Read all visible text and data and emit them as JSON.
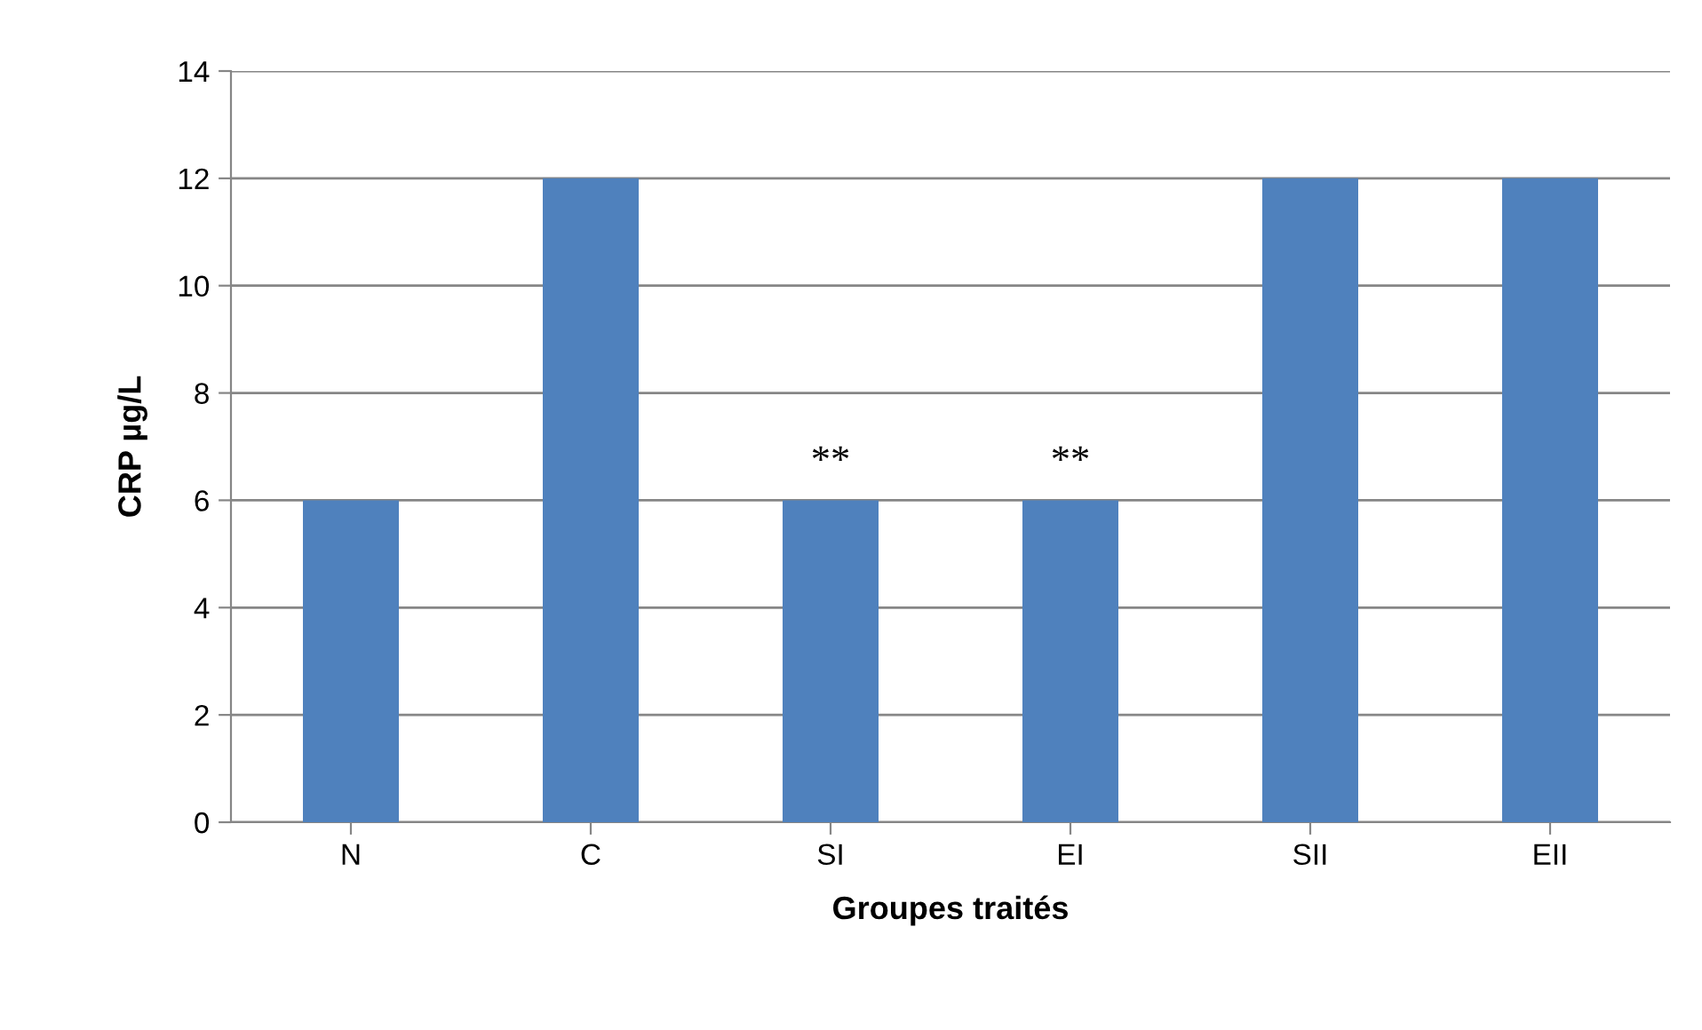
{
  "chart_data": {
    "type": "bar",
    "categories": [
      "N",
      "C",
      "SI",
      "EI",
      "SII",
      "EII"
    ],
    "values": [
      6,
      12,
      6,
      6,
      12,
      12
    ],
    "color": "#4f81bd",
    "xlabel": "Groupes traités",
    "ylabel": "CRP µg/L",
    "ylim": [
      0,
      14
    ],
    "yticks": [
      0,
      2,
      4,
      6,
      8,
      10,
      12,
      14
    ],
    "grid": "y",
    "annotations": [
      {
        "text": "**",
        "x": "SI",
        "y": 6
      },
      {
        "text": "**",
        "x": "EI",
        "y": 6
      }
    ]
  }
}
